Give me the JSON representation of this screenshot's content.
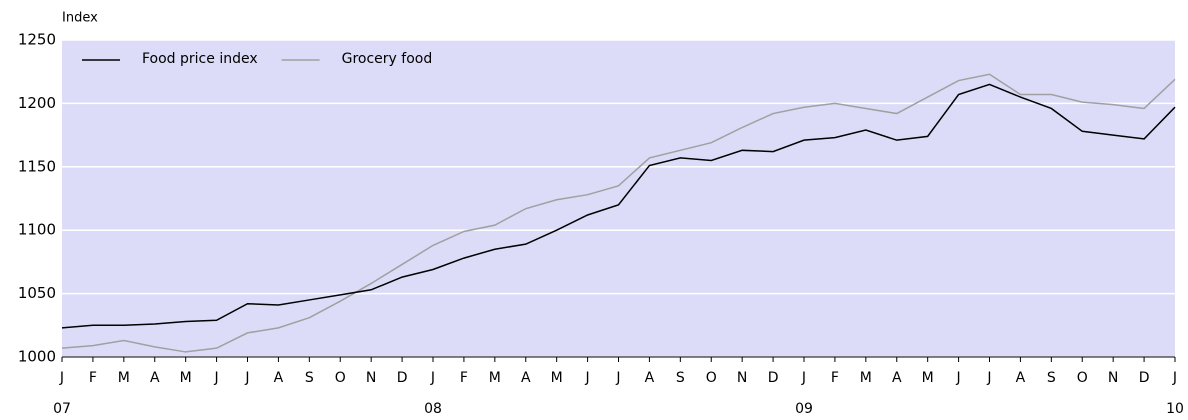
{
  "chart_data": {
    "type": "line",
    "y_axis_label": "Index",
    "categories": [
      "J",
      "F",
      "M",
      "A",
      "M",
      "J",
      "J",
      "A",
      "S",
      "O",
      "N",
      "D",
      "J",
      "F",
      "M",
      "A",
      "M",
      "J",
      "J",
      "A",
      "S",
      "O",
      "N",
      "D",
      "J",
      "F",
      "M",
      "A",
      "M",
      "J",
      "J",
      "A",
      "S",
      "O",
      "N",
      "D",
      "J"
    ],
    "category_years": [
      "07",
      null,
      null,
      null,
      null,
      null,
      null,
      null,
      null,
      null,
      null,
      null,
      "08",
      null,
      null,
      null,
      null,
      null,
      null,
      null,
      null,
      null,
      null,
      null,
      "09",
      null,
      null,
      null,
      null,
      null,
      null,
      null,
      null,
      null,
      null,
      null,
      "10"
    ],
    "series": [
      {
        "name": "Food price index",
        "color": "#000000",
        "values": [
          1023,
          1025,
          1025,
          1026,
          1028,
          1029,
          1042,
          1041,
          1045,
          1049,
          1053,
          1063,
          1069,
          1078,
          1085,
          1089,
          1100,
          1112,
          1120,
          1151,
          1157,
          1155,
          1163,
          1162,
          1171,
          1173,
          1179,
          1171,
          1174,
          1207,
          1215,
          1205,
          1196,
          1178,
          1175,
          1172,
          1197
        ]
      },
      {
        "name": "Grocery food",
        "color": "#a0a0a0",
        "values": [
          1007,
          1009,
          1013,
          1008,
          1004,
          1007,
          1019,
          1023,
          1031,
          1044,
          1058,
          1073,
          1088,
          1099,
          1104,
          1117,
          1124,
          1128,
          1135,
          1157,
          1163,
          1169,
          1181,
          1192,
          1197,
          1200,
          1196,
          1192,
          1205,
          1218,
          1223,
          1207,
          1207,
          1201,
          1199,
          1196,
          1219
        ]
      }
    ],
    "ylim": [
      1000,
      1250
    ],
    "yticks": [
      1000,
      1050,
      1100,
      1150,
      1200,
      1250
    ],
    "grid": true,
    "legend": "top-left",
    "background": "#dcdcf8"
  }
}
